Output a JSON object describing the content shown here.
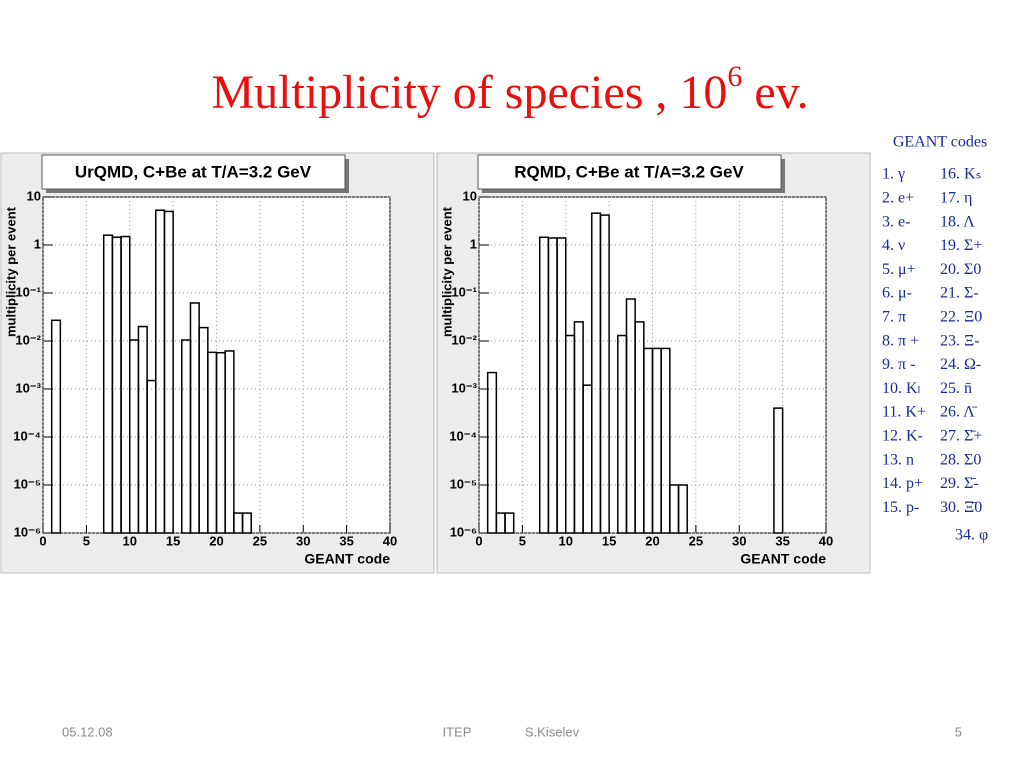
{
  "title": {
    "text": "Multiplicity of species , 10",
    "superscript": "6",
    "suffix": " ev."
  },
  "codes": {
    "header": "GEANT codes",
    "left": [
      "1. γ",
      "2. e+",
      "3. e-",
      "4. ν",
      "5. μ+",
      "6. μ-",
      "7. π",
      "8. π +",
      "9. π -",
      "10. Kₗ",
      "11. K+",
      "12. K-",
      "13. n",
      "14. p+",
      "15. p-"
    ],
    "right": [
      "16. Kₛ",
      "17. η",
      "18. Λ",
      "19. Σ+",
      "20. Σ0",
      "21. Σ-",
      "22. Ξ0",
      "23. Ξ-",
      "24. Ω-",
      "25. n̄",
      "26. Λ̄",
      "27. Σ̄+",
      "28. Σ0",
      "29. Σ̄-",
      "30. Ξ̄0",
      "34. φ"
    ]
  },
  "footer": {
    "date": "05.12.08",
    "org": "ITEP",
    "author": "S.Kiselev",
    "page": "5"
  },
  "chart_data": [
    {
      "type": "histogram",
      "title": "UrQMD, C+Be at T/A=3.2 GeV",
      "y_label": "multiplicity per event",
      "x_label": "GEANT code",
      "bins": [
        0,
        1,
        2,
        3,
        4,
        5,
        6,
        7,
        8,
        9,
        10,
        11,
        12,
        13,
        14,
        15,
        16,
        17,
        18,
        19,
        20,
        21,
        22,
        23,
        24,
        25,
        26,
        27,
        28,
        29,
        30,
        31,
        32,
        33,
        34,
        35,
        36,
        37,
        38,
        39,
        40
      ],
      "values": [
        0,
        0.027,
        0,
        0,
        0,
        0,
        0,
        1.6,
        1.45,
        1.5,
        0.0105,
        0.02,
        0.0015,
        5.3,
        5,
        0,
        0.0105,
        0.062,
        0.019,
        0.0058,
        0.0057,
        0.0062,
        2.6e-06,
        2.6e-06,
        0,
        0,
        0,
        0,
        0,
        0,
        0,
        0,
        0,
        0,
        0,
        0,
        0,
        0,
        0,
        0
      ],
      "xlim": [
        0,
        40
      ],
      "xticks": [
        0,
        5,
        10,
        15,
        20,
        25,
        30,
        35,
        40
      ],
      "ylim": [
        1e-06,
        10
      ],
      "log_y": true,
      "grid": true,
      "color": "#000000",
      "yticks": [
        {
          "value": 1e-06,
          "label": "10⁻⁶"
        },
        {
          "value": 1e-05,
          "label": "10⁻⁵"
        },
        {
          "value": 0.0001,
          "label": "10⁻⁴"
        },
        {
          "value": 0.001,
          "label": "10⁻³"
        },
        {
          "value": 0.01,
          "label": "10⁻²"
        },
        {
          "value": 0.1,
          "label": "10⁻¹"
        },
        1,
        10
      ]
    },
    {
      "type": "histogram",
      "title": "RQMD, C+Be at T/A=3.2 GeV",
      "y_label": "multiplicity per event",
      "x_label": "GEANT code",
      "bins": [
        0,
        1,
        2,
        3,
        4,
        5,
        6,
        7,
        8,
        9,
        10,
        11,
        12,
        13,
        14,
        15,
        16,
        17,
        18,
        19,
        20,
        21,
        22,
        23,
        24,
        25,
        26,
        27,
        28,
        29,
        30,
        31,
        32,
        33,
        34,
        35,
        36,
        37,
        38,
        39,
        40
      ],
      "values": [
        0,
        0.0022,
        2.6e-06,
        2.6e-06,
        0,
        0,
        0,
        1.45,
        1.4,
        1.4,
        0.013,
        0.025,
        0.0012,
        4.6,
        4.2,
        0,
        0.013,
        0.075,
        0.025,
        0.007,
        0.007,
        0.007,
        1e-05,
        1e-05,
        0,
        0,
        0,
        0,
        0,
        0,
        0,
        0,
        0,
        0,
        0.0004,
        0,
        0,
        0,
        0,
        0
      ],
      "xlim": [
        0,
        40
      ],
      "xticks": [
        0,
        5,
        10,
        15,
        20,
        25,
        30,
        35,
        40
      ],
      "ylim": [
        1e-06,
        10
      ],
      "log_y": true,
      "grid": true,
      "color": "#000000",
      "yticks": [
        {
          "value": 1e-06,
          "label": "10⁻⁶"
        },
        {
          "value": 1e-05,
          "label": "10⁻⁵"
        },
        {
          "value": 0.0001,
          "label": "10⁻⁴"
        },
        {
          "value": 0.001,
          "label": "10⁻³"
        },
        {
          "value": 0.01,
          "label": "10⁻²"
        },
        {
          "value": 0.1,
          "label": "10⁻¹"
        },
        1,
        10
      ]
    }
  ]
}
